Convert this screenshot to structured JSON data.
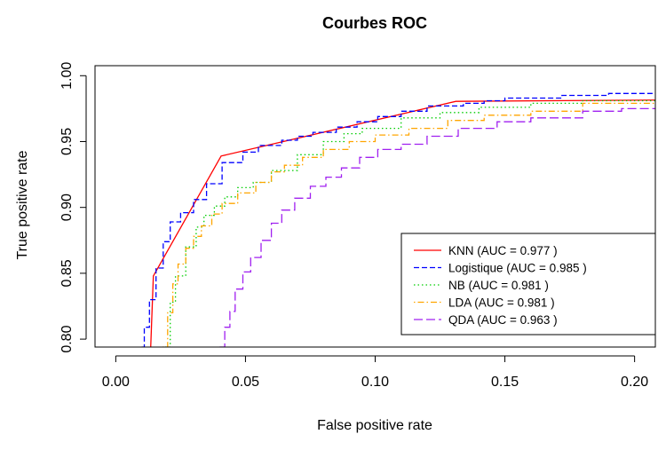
{
  "chart_data": {
    "type": "line",
    "title": "Courbes ROC",
    "xlabel": "False positive rate",
    "ylabel": "True positive rate",
    "xlim": [
      -0.008,
      0.208
    ],
    "ylim": [
      0.794,
      1.0076
    ],
    "x_ticks": [
      0.0,
      0.05,
      0.1,
      0.15,
      0.2
    ],
    "x_tick_labels": [
      "0.00",
      "0.05",
      "0.10",
      "0.15",
      "0.20"
    ],
    "y_ticks": [
      0.8,
      0.85,
      0.9,
      0.95,
      1.0
    ],
    "y_tick_labels": [
      "0.80",
      "0.85",
      "0.90",
      "0.95",
      "1.00"
    ],
    "grid": false,
    "legend_position": "bottom-right",
    "series": [
      {
        "name": "KNN (AUC = 0.977 )",
        "color": "#ff0000",
        "dash": "solid",
        "points": [
          [
            0.0134,
            0.79
          ],
          [
            0.0145,
            0.848
          ],
          [
            0.0406,
            0.939
          ],
          [
            0.1311,
            0.9805
          ],
          [
            0.21,
            0.9815
          ]
        ]
      },
      {
        "name": "Logistique (AUC = 0.985 )",
        "color": "#0000ff",
        "dash": "dashed",
        "points": [
          [
            0.01,
            0.794
          ],
          [
            0.011,
            0.809
          ],
          [
            0.013,
            0.83
          ],
          [
            0.0155,
            0.854
          ],
          [
            0.0183,
            0.874
          ],
          [
            0.021,
            0.889
          ],
          [
            0.025,
            0.896
          ],
          [
            0.03,
            0.906
          ],
          [
            0.035,
            0.918
          ],
          [
            0.041,
            0.934
          ],
          [
            0.049,
            0.942
          ],
          [
            0.055,
            0.947
          ],
          [
            0.064,
            0.951
          ],
          [
            0.07,
            0.954
          ],
          [
            0.076,
            0.957
          ],
          [
            0.085,
            0.961
          ],
          [
            0.093,
            0.965
          ],
          [
            0.101,
            0.969
          ],
          [
            0.11,
            0.973
          ],
          [
            0.12,
            0.977
          ],
          [
            0.134,
            0.979
          ],
          [
            0.142,
            0.981
          ],
          [
            0.15,
            0.983
          ],
          [
            0.16,
            0.983
          ],
          [
            0.172,
            0.985
          ],
          [
            0.19,
            0.9865
          ],
          [
            0.21,
            0.9865
          ]
        ]
      },
      {
        "name": "NB (AUC = 0.981 )",
        "color": "#00cd00",
        "dash": "dotted",
        "points": [
          [
            0.019,
            0.794
          ],
          [
            0.021,
            0.828
          ],
          [
            0.023,
            0.848
          ],
          [
            0.027,
            0.87
          ],
          [
            0.031,
            0.885
          ],
          [
            0.034,
            0.894
          ],
          [
            0.038,
            0.901
          ],
          [
            0.042,
            0.908
          ],
          [
            0.047,
            0.915
          ],
          [
            0.053,
            0.919
          ],
          [
            0.06,
            0.928
          ],
          [
            0.07,
            0.94
          ],
          [
            0.08,
            0.95
          ],
          [
            0.088,
            0.956
          ],
          [
            0.095,
            0.96
          ],
          [
            0.11,
            0.968
          ],
          [
            0.125,
            0.972
          ],
          [
            0.14,
            0.976
          ],
          [
            0.16,
            0.979
          ],
          [
            0.18,
            0.981
          ],
          [
            0.21,
            0.981
          ]
        ]
      },
      {
        "name": "LDA (AUC = 0.981 )",
        "color": "#ffa500",
        "dash": "dotdash",
        "points": [
          [
            0.018,
            0.794
          ],
          [
            0.02,
            0.82
          ],
          [
            0.022,
            0.842
          ],
          [
            0.024,
            0.857
          ],
          [
            0.027,
            0.869
          ],
          [
            0.03,
            0.878
          ],
          [
            0.033,
            0.886
          ],
          [
            0.037,
            0.895
          ],
          [
            0.041,
            0.903
          ],
          [
            0.047,
            0.911
          ],
          [
            0.054,
            0.919
          ],
          [
            0.06,
            0.927
          ],
          [
            0.065,
            0.932
          ],
          [
            0.072,
            0.938
          ],
          [
            0.08,
            0.944
          ],
          [
            0.09,
            0.95
          ],
          [
            0.1,
            0.955
          ],
          [
            0.113,
            0.96
          ],
          [
            0.128,
            0.966
          ],
          [
            0.142,
            0.97
          ],
          [
            0.16,
            0.973
          ],
          [
            0.18,
            0.979
          ],
          [
            0.21,
            0.982
          ]
        ]
      },
      {
        "name": "QDA (AUC = 0.963 )",
        "color": "#a020f0",
        "dash": "longdash",
        "points": [
          [
            0.04,
            0.794
          ],
          [
            0.042,
            0.809
          ],
          [
            0.044,
            0.821
          ],
          [
            0.046,
            0.838
          ],
          [
            0.049,
            0.851
          ],
          [
            0.052,
            0.862
          ],
          [
            0.056,
            0.875
          ],
          [
            0.06,
            0.888
          ],
          [
            0.064,
            0.898
          ],
          [
            0.069,
            0.907
          ],
          [
            0.075,
            0.916
          ],
          [
            0.081,
            0.923
          ],
          [
            0.087,
            0.93
          ],
          [
            0.094,
            0.938
          ],
          [
            0.101,
            0.944
          ],
          [
            0.11,
            0.948
          ],
          [
            0.12,
            0.954
          ],
          [
            0.132,
            0.96
          ],
          [
            0.147,
            0.965
          ],
          [
            0.16,
            0.968
          ],
          [
            0.18,
            0.973
          ],
          [
            0.195,
            0.975
          ],
          [
            0.21,
            0.975
          ]
        ]
      }
    ]
  }
}
